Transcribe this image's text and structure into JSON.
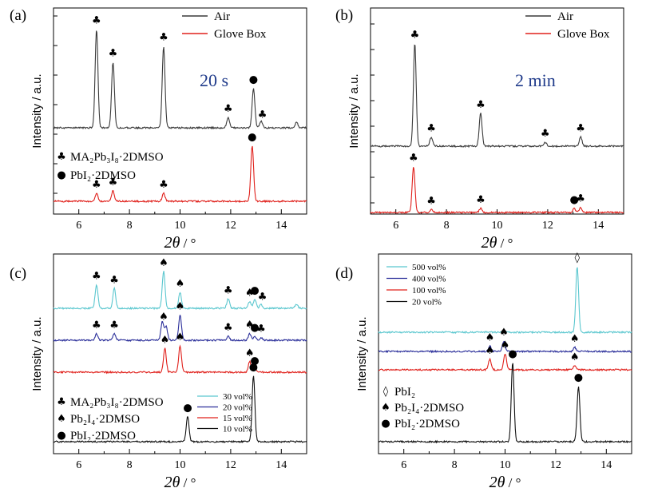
{
  "panels": [
    {
      "id": "a",
      "label": "(a)",
      "xlabel_var": "2θ",
      "xlabel_unit": " / °",
      "ylabel": "Intensity / a.u.",
      "xticks": [
        6,
        8,
        10,
        12,
        14
      ],
      "xlim": [
        5,
        15
      ],
      "annotation": "20 s",
      "legend_top": [
        {
          "name": "Air",
          "color": "#3a3a3a"
        },
        {
          "name": "Glove Box",
          "color": "#e0201b"
        }
      ],
      "legend_bottom": [
        {
          "symbol": "♣",
          "text": "MA₂Pb₃I₈·2DMSO"
        },
        {
          "symbol": "●",
          "text": "PbI₂·2DMSO"
        }
      ]
    },
    {
      "id": "b",
      "label": "(b)",
      "xlabel_var": "2θ",
      "xlabel_unit": " / °",
      "ylabel": "Intensity / a.u.",
      "xticks": [
        6,
        8,
        10,
        12,
        14
      ],
      "xlim": [
        5,
        15
      ],
      "annotation": "2 min",
      "legend_top": [
        {
          "name": "Air",
          "color": "#3a3a3a"
        },
        {
          "name": "Glove Box",
          "color": "#e0201b"
        }
      ]
    },
    {
      "id": "c",
      "label": "(c)",
      "xlabel_var": "2θ",
      "xlabel_unit": " / °",
      "ylabel": "Intensity / a.u.",
      "xticks": [
        6,
        8,
        10,
        12,
        14
      ],
      "xlim": [
        5,
        15
      ],
      "legend_series": [
        {
          "name": "30 vol%",
          "color": "#5bc7cf"
        },
        {
          "name": "20 vol%",
          "color": "#2b2f9a"
        },
        {
          "name": "15 vol%",
          "color": "#e0201b"
        },
        {
          "name": "10 vol%",
          "color": "#111111"
        }
      ],
      "legend_bottom": [
        {
          "symbol": "♣",
          "text": "MA₂Pb₃I₈·2DMSO"
        },
        {
          "symbol": "♠",
          "text": "Pb₂I₄·2DMSO"
        },
        {
          "symbol": "●",
          "text": "PbI₂·2DMSO"
        }
      ]
    },
    {
      "id": "d",
      "label": "(d)",
      "xlabel_var": "2θ",
      "xlabel_unit": " / °",
      "ylabel": "Intensity / a.u.",
      "xticks": [
        6,
        8,
        10,
        12,
        14
      ],
      "xlim": [
        5,
        15
      ],
      "legend_series": [
        {
          "name": "500 vol%",
          "color": "#5bc7cf"
        },
        {
          "name": "400 vol%",
          "color": "#2b2f9a"
        },
        {
          "name": "100 vol%",
          "color": "#e0201b"
        },
        {
          "name": "20 vol%",
          "color": "#111111"
        }
      ],
      "legend_bottom": [
        {
          "symbol": "◊",
          "text": "PbI₂"
        },
        {
          "symbol": "♠",
          "text": "Pb₂I₄·2DMSO"
        },
        {
          "symbol": "●",
          "text": "PbI₂·2DMSO"
        }
      ]
    }
  ],
  "chart_data": [
    {
      "type": "line",
      "panel": "a",
      "xlim": [
        5,
        15
      ],
      "series": [
        {
          "name": "Air",
          "color": "#3a3a3a",
          "peaks": [
            [
              6.7,
              0.75
            ],
            [
              7.35,
              0.5
            ],
            [
              9.35,
              0.62
            ],
            [
              11.9,
              0.08
            ],
            [
              12.9,
              0.3
            ],
            [
              13.2,
              0.05
            ],
            [
              14.6,
              0.04
            ]
          ],
          "markers": [
            [
              6.7,
              "♣"
            ],
            [
              7.35,
              "♣"
            ],
            [
              9.35,
              "♣"
            ],
            [
              11.9,
              "♣"
            ],
            [
              12.9,
              "●"
            ],
            [
              13.25,
              "♣"
            ]
          ]
        },
        {
          "name": "Glove Box",
          "color": "#e0201b",
          "peaks": [
            [
              6.7,
              0.06
            ],
            [
              7.35,
              0.08
            ],
            [
              9.35,
              0.06
            ],
            [
              12.85,
              0.42
            ]
          ],
          "markers": [
            [
              6.7,
              "♣"
            ],
            [
              7.35,
              "♣"
            ],
            [
              9.35,
              "♣"
            ],
            [
              12.85,
              "●"
            ]
          ]
        }
      ]
    },
    {
      "type": "line",
      "panel": "b",
      "xlim": [
        5,
        15
      ],
      "series": [
        {
          "name": "Air",
          "color": "#3a3a3a",
          "peaks": [
            [
              6.75,
              0.78
            ],
            [
              7.4,
              0.07
            ],
            [
              9.35,
              0.25
            ],
            [
              11.9,
              0.03
            ],
            [
              13.3,
              0.07
            ]
          ],
          "markers": [
            [
              6.75,
              "♣"
            ],
            [
              7.4,
              "♣"
            ],
            [
              9.35,
              "♣"
            ],
            [
              11.9,
              "♣"
            ],
            [
              13.3,
              "♣"
            ]
          ]
        },
        {
          "name": "Glove Box",
          "color": "#e0201b",
          "peaks": [
            [
              6.7,
              0.35
            ],
            [
              7.4,
              0.02
            ],
            [
              9.35,
              0.03
            ],
            [
              13.05,
              0.03
            ],
            [
              13.3,
              0.04
            ]
          ],
          "markers": [
            [
              6.7,
              "♣"
            ],
            [
              7.4,
              "♣"
            ],
            [
              9.35,
              "♣"
            ],
            [
              13.05,
              "●"
            ],
            [
              13.3,
              "♣"
            ]
          ]
        }
      ]
    },
    {
      "type": "line",
      "panel": "c",
      "xlim": [
        5,
        15
      ],
      "series": [
        {
          "name": "30 vol%",
          "color": "#5bc7cf",
          "peaks": [
            [
              6.7,
              0.18
            ],
            [
              7.4,
              0.15
            ],
            [
              9.35,
              0.28
            ],
            [
              10.0,
              0.12
            ],
            [
              11.9,
              0.07
            ],
            [
              12.75,
              0.05
            ],
            [
              12.95,
              0.07
            ],
            [
              13.2,
              0.03
            ],
            [
              14.6,
              0.03
            ]
          ],
          "markers": [
            [
              6.7,
              "♣"
            ],
            [
              7.4,
              "♣"
            ],
            [
              9.35,
              "♠"
            ],
            [
              10.0,
              "♠"
            ],
            [
              11.9,
              "♣"
            ],
            [
              12.75,
              "♠"
            ],
            [
              12.95,
              "●"
            ],
            [
              13.25,
              "♣"
            ]
          ]
        },
        {
          "name": "20 vol%",
          "color": "#2b2f9a",
          "peaks": [
            [
              6.7,
              0.05
            ],
            [
              7.4,
              0.05
            ],
            [
              9.3,
              0.14
            ],
            [
              9.45,
              0.1
            ],
            [
              10.0,
              0.19
            ],
            [
              11.9,
              0.03
            ],
            [
              12.75,
              0.05
            ],
            [
              12.95,
              0.03
            ],
            [
              13.2,
              0.02
            ]
          ],
          "markers": [
            [
              6.7,
              "♣"
            ],
            [
              7.4,
              "♣"
            ],
            [
              9.35,
              "♠"
            ],
            [
              10.0,
              "♠"
            ],
            [
              11.9,
              "♣"
            ],
            [
              12.75,
              "♠"
            ],
            [
              12.95,
              "●"
            ],
            [
              13.2,
              "♣"
            ]
          ]
        },
        {
          "name": "15 vol%",
          "color": "#e0201b",
          "peaks": [
            [
              9.4,
              0.18
            ],
            [
              10.0,
              0.2
            ],
            [
              12.75,
              0.08
            ],
            [
              12.95,
              0.02
            ]
          ],
          "markers": [
            [
              9.4,
              "♠"
            ],
            [
              10.0,
              "♠"
            ],
            [
              12.75,
              "♠"
            ],
            [
              12.95,
              "●"
            ]
          ]
        },
        {
          "name": "10 vol%",
          "color": "#111111",
          "peaks": [
            [
              10.3,
              0.19
            ],
            [
              12.9,
              0.5
            ]
          ],
          "markers": [
            [
              10.3,
              "●"
            ],
            [
              12.9,
              "●"
            ]
          ]
        }
      ]
    },
    {
      "type": "line",
      "panel": "d",
      "xlim": [
        5,
        15
      ],
      "series": [
        {
          "name": "500 vol%",
          "color": "#5bc7cf",
          "peaks": [
            [
              12.85,
              0.5
            ]
          ],
          "markers": [
            [
              12.85,
              "◊"
            ]
          ]
        },
        {
          "name": "400 vol%",
          "color": "#2b2f9a",
          "peaks": [
            [
              9.4,
              0.04
            ],
            [
              9.95,
              0.08
            ],
            [
              12.75,
              0.03
            ]
          ],
          "markers": [
            [
              9.4,
              "♠"
            ],
            [
              9.95,
              "♠"
            ],
            [
              12.75,
              "♠"
            ]
          ]
        },
        {
          "name": "100 vol%",
          "color": "#e0201b",
          "peaks": [
            [
              9.4,
              0.08
            ],
            [
              10.0,
              0.12
            ],
            [
              12.75,
              0.03
            ]
          ],
          "markers": [
            [
              9.4,
              "♠"
            ],
            [
              10.0,
              "♠"
            ],
            [
              12.75,
              "♠"
            ]
          ]
        },
        {
          "name": "20 vol%",
          "color": "#111111",
          "peaks": [
            [
              10.3,
              0.6
            ],
            [
              12.9,
              0.42
            ]
          ],
          "markers": [
            [
              10.3,
              "●"
            ],
            [
              12.9,
              "●"
            ]
          ]
        }
      ]
    }
  ]
}
